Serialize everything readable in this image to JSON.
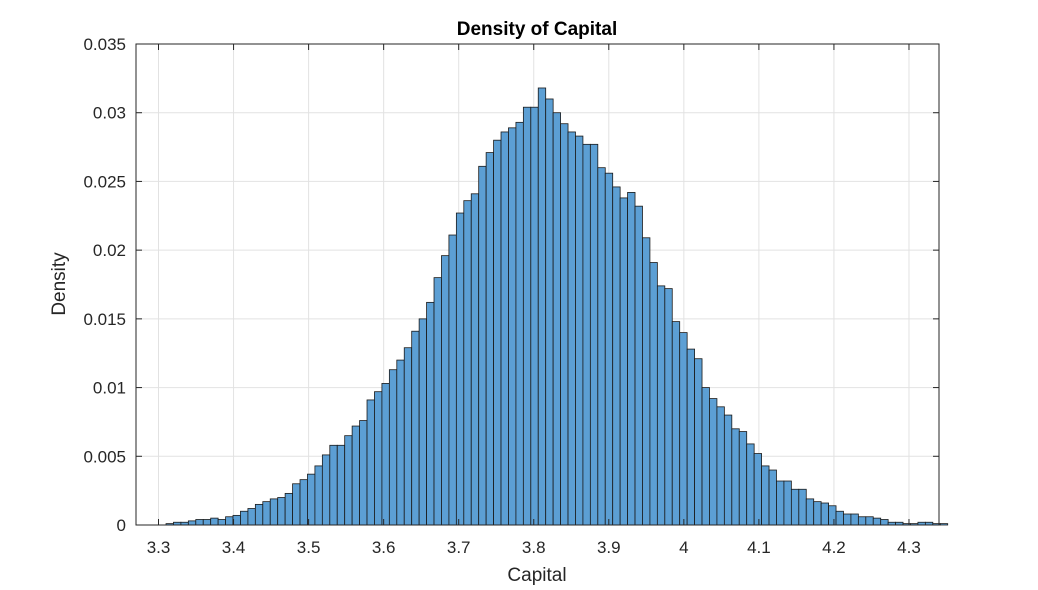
{
  "chart_data": {
    "type": "bar",
    "subtype": "histogram",
    "title": "Density of Capital",
    "xlabel": "Capital",
    "ylabel": "Density",
    "xlim": [
      3.27,
      4.34
    ],
    "ylim": [
      0,
      0.035
    ],
    "xticks": [
      3.3,
      3.4,
      3.5,
      3.6,
      3.7,
      3.8,
      3.9,
      4.0,
      4.1,
      4.2,
      4.3
    ],
    "xtick_labels": [
      "3.3",
      "3.4",
      "3.5",
      "3.6",
      "3.7",
      "3.8",
      "3.9",
      "4",
      "4.1",
      "4.2",
      "4.3"
    ],
    "yticks": [
      0,
      0.005,
      0.01,
      0.015,
      0.02,
      0.025,
      0.03,
      0.035
    ],
    "ytick_labels": [
      "0",
      "0.005",
      "0.01",
      "0.015",
      "0.02",
      "0.025",
      "0.03",
      "0.035"
    ],
    "grid": true,
    "bar_color": "#5c9fd4",
    "edge_color": "#1a1a1a",
    "bin_start": 3.31,
    "bin_width": 0.00992,
    "values": [
      0.0001,
      0.0002,
      0.0002,
      0.0003,
      0.0004,
      0.0004,
      0.0005,
      0.0004,
      0.0006,
      0.0007,
      0.001,
      0.0012,
      0.0015,
      0.0017,
      0.0019,
      0.002,
      0.0023,
      0.003,
      0.0033,
      0.0037,
      0.0043,
      0.0051,
      0.0058,
      0.0058,
      0.0065,
      0.0072,
      0.0076,
      0.0091,
      0.0097,
      0.0103,
      0.0113,
      0.012,
      0.0129,
      0.0141,
      0.015,
      0.0162,
      0.018,
      0.0196,
      0.0211,
      0.0227,
      0.0236,
      0.0241,
      0.0261,
      0.0271,
      0.028,
      0.0286,
      0.0289,
      0.0293,
      0.0304,
      0.0304,
      0.0318,
      0.031,
      0.03,
      0.0292,
      0.0286,
      0.0283,
      0.0277,
      0.0277,
      0.026,
      0.0256,
      0.0246,
      0.0238,
      0.0242,
      0.0232,
      0.0209,
      0.0191,
      0.0174,
      0.0172,
      0.0148,
      0.014,
      0.0128,
      0.0121,
      0.01,
      0.0092,
      0.0086,
      0.008,
      0.007,
      0.0068,
      0.0059,
      0.0052,
      0.0043,
      0.004,
      0.0032,
      0.0032,
      0.0026,
      0.0026,
      0.0019,
      0.0017,
      0.0016,
      0.0014,
      0.001,
      0.0008,
      0.0008,
      0.0006,
      0.0006,
      0.0005,
      0.0004,
      0.0002,
      0.0002,
      0.0001,
      0.0001,
      0.0002,
      0.0002,
      0.0001,
      0.0001
    ]
  }
}
